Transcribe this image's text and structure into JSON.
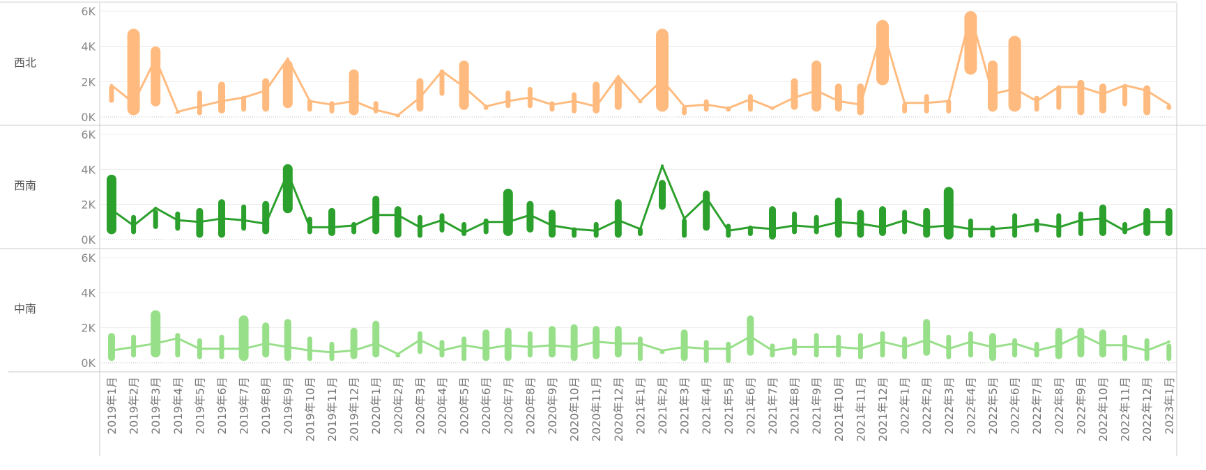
{
  "chart_data": {
    "type": "line",
    "y_ticks": [
      "0K",
      "2K",
      "4K",
      "6K"
    ],
    "ylim": [
      0,
      6000
    ],
    "categories": [
      "2019年1月",
      "2019年2月",
      "2019年3月",
      "2019年4月",
      "2019年5月",
      "2019年6月",
      "2019年7月",
      "2019年8月",
      "2019年9月",
      "2019年10月",
      "2019年11月",
      "2019年12月",
      "2020年1月",
      "2020年2月",
      "2020年3月",
      "2020年4月",
      "2020年5月",
      "2020年6月",
      "2020年7月",
      "2020年8月",
      "2020年9月",
      "2020年10月",
      "2020年11月",
      "2020年12月",
      "2021年1月",
      "2021年2月",
      "2021年3月",
      "2021年4月",
      "2021年5月",
      "2021年6月",
      "2021年7月",
      "2021年8月",
      "2021年9月",
      "2021年10月",
      "2021年11月",
      "2021年12月",
      "2022年1月",
      "2022年2月",
      "2022年3月",
      "2022年4月",
      "2022年5月",
      "2022年6月",
      "2022年7月",
      "2022年8月",
      "2022年9月",
      "2022年10月",
      "2022年11月",
      "2022年12月",
      "2023年1月"
    ],
    "series": [
      {
        "name": "西北",
        "color": "#ffbb7f",
        "values": [
          1800,
          800,
          3300,
          300,
          600,
          900,
          1100,
          1500,
          3300,
          900,
          700,
          900,
          400,
          100,
          1100,
          2600,
          1700,
          600,
          900,
          1100,
          700,
          900,
          600,
          2300,
          900,
          2100,
          600,
          700,
          500,
          1000,
          500,
          1100,
          1500,
          900,
          700,
          5000,
          800,
          800,
          900,
          5800,
          1300,
          1600,
          900,
          1700,
          1700,
          1300,
          1800,
          1500,
          700
        ],
        "bars": [
          [
            800,
            1800
          ],
          [
            100,
            5000
          ],
          [
            600,
            4000
          ],
          [
            200,
            300
          ],
          [
            100,
            1500
          ],
          [
            200,
            2000
          ],
          [
            300,
            1200
          ],
          [
            300,
            2200
          ],
          [
            500,
            3200
          ],
          [
            300,
            1000
          ],
          [
            200,
            900
          ],
          [
            100,
            2700
          ],
          [
            200,
            900
          ],
          [
            100,
            100
          ],
          [
            300,
            2200
          ],
          [
            1200,
            2700
          ],
          [
            400,
            3200
          ],
          [
            400,
            700
          ],
          [
            500,
            1500
          ],
          [
            500,
            1700
          ],
          [
            300,
            900
          ],
          [
            200,
            1400
          ],
          [
            200,
            2000
          ],
          [
            400,
            2300
          ],
          [
            800,
            900
          ],
          [
            300,
            5000
          ],
          [
            100,
            600
          ],
          [
            300,
            1000
          ],
          [
            300,
            600
          ],
          [
            300,
            1300
          ],
          [
            400,
            600
          ],
          [
            400,
            2200
          ],
          [
            300,
            3200
          ],
          [
            300,
            1900
          ],
          [
            100,
            1900
          ],
          [
            1800,
            5500
          ],
          [
            200,
            800
          ],
          [
            200,
            1300
          ],
          [
            200,
            1000
          ],
          [
            2400,
            6000
          ],
          [
            300,
            3200
          ],
          [
            300,
            4600
          ],
          [
            300,
            1200
          ],
          [
            400,
            1800
          ],
          [
            100,
            2100
          ],
          [
            200,
            1900
          ],
          [
            600,
            1800
          ],
          [
            100,
            1800
          ],
          [
            400,
            700
          ]
        ]
      },
      {
        "name": "西南",
        "color": "#2ca02c",
        "values": [
          1700,
          800,
          1800,
          1100,
          1000,
          1200,
          1100,
          900,
          3800,
          700,
          700,
          800,
          1400,
          1400,
          700,
          1100,
          400,
          1000,
          1000,
          1400,
          800,
          600,
          500,
          1100,
          600,
          4200,
          1200,
          2400,
          500,
          700,
          600,
          800,
          700,
          1000,
          900,
          700,
          1100,
          700,
          800,
          600,
          600,
          700,
          900,
          700,
          1100,
          1200,
          500,
          1000,
          1000
        ],
        "bars": [
          [
            300,
            3700
          ],
          [
            300,
            1400
          ],
          [
            600,
            1700
          ],
          [
            500,
            1600
          ],
          [
            100,
            1800
          ],
          [
            100,
            2300
          ],
          [
            500,
            2000
          ],
          [
            300,
            2200
          ],
          [
            1500,
            4300
          ],
          [
            300,
            1300
          ],
          [
            200,
            1800
          ],
          [
            300,
            1000
          ],
          [
            300,
            2500
          ],
          [
            100,
            1900
          ],
          [
            100,
            1400
          ],
          [
            400,
            1500
          ],
          [
            200,
            1000
          ],
          [
            300,
            1200
          ],
          [
            200,
            2900
          ],
          [
            400,
            2200
          ],
          [
            100,
            1700
          ],
          [
            100,
            700
          ],
          [
            100,
            1000
          ],
          [
            100,
            2300
          ],
          [
            200,
            700
          ],
          [
            1700,
            3400
          ],
          [
            100,
            1200
          ],
          [
            500,
            2800
          ],
          [
            100,
            900
          ],
          [
            200,
            800
          ],
          [
            0,
            1900
          ],
          [
            300,
            1600
          ],
          [
            300,
            1400
          ],
          [
            100,
            2400
          ],
          [
            100,
            1700
          ],
          [
            200,
            1900
          ],
          [
            300,
            1700
          ],
          [
            100,
            1800
          ],
          [
            0,
            3000
          ],
          [
            100,
            1200
          ],
          [
            100,
            800
          ],
          [
            100,
            1500
          ],
          [
            400,
            1200
          ],
          [
            100,
            1500
          ],
          [
            200,
            1600
          ],
          [
            200,
            2000
          ],
          [
            300,
            1000
          ],
          [
            200,
            1800
          ],
          [
            200,
            1800
          ]
        ]
      },
      {
        "name": "中南",
        "color": "#98df8a",
        "values": [
          700,
          900,
          1100,
          1400,
          800,
          800,
          800,
          1100,
          900,
          700,
          600,
          700,
          1100,
          500,
          1300,
          700,
          1000,
          800,
          1000,
          900,
          1000,
          900,
          1200,
          1100,
          1100,
          700,
          900,
          800,
          800,
          1500,
          700,
          900,
          900,
          900,
          800,
          1200,
          900,
          1300,
          800,
          1200,
          900,
          1100,
          700,
          1000,
          1600,
          1000,
          1000,
          700,
          1200
        ],
        "bars": [
          [
            100,
            1700
          ],
          [
            300,
            1600
          ],
          [
            300,
            3000
          ],
          [
            300,
            1700
          ],
          [
            200,
            1400
          ],
          [
            200,
            1600
          ],
          [
            100,
            2700
          ],
          [
            300,
            2300
          ],
          [
            100,
            2500
          ],
          [
            100,
            1500
          ],
          [
            100,
            1200
          ],
          [
            200,
            2000
          ],
          [
            300,
            2400
          ],
          [
            300,
            500
          ],
          [
            500,
            1800
          ],
          [
            300,
            1300
          ],
          [
            100,
            1500
          ],
          [
            100,
            1900
          ],
          [
            100,
            2000
          ],
          [
            300,
            1800
          ],
          [
            300,
            2100
          ],
          [
            100,
            2200
          ],
          [
            200,
            2100
          ],
          [
            300,
            2100
          ],
          [
            100,
            1500
          ],
          [
            500,
            700
          ],
          [
            100,
            1900
          ],
          [
            0,
            1300
          ],
          [
            0,
            1200
          ],
          [
            400,
            2700
          ],
          [
            300,
            1100
          ],
          [
            400,
            1400
          ],
          [
            300,
            1700
          ],
          [
            300,
            1600
          ],
          [
            200,
            1700
          ],
          [
            300,
            1800
          ],
          [
            200,
            1500
          ],
          [
            400,
            2500
          ],
          [
            200,
            1600
          ],
          [
            300,
            1800
          ],
          [
            100,
            1700
          ],
          [
            300,
            1400
          ],
          [
            300,
            1200
          ],
          [
            200,
            2000
          ],
          [
            300,
            2000
          ],
          [
            300,
            1900
          ],
          [
            100,
            1600
          ],
          [
            100,
            1400
          ],
          [
            100,
            1100
          ]
        ]
      }
    ]
  }
}
